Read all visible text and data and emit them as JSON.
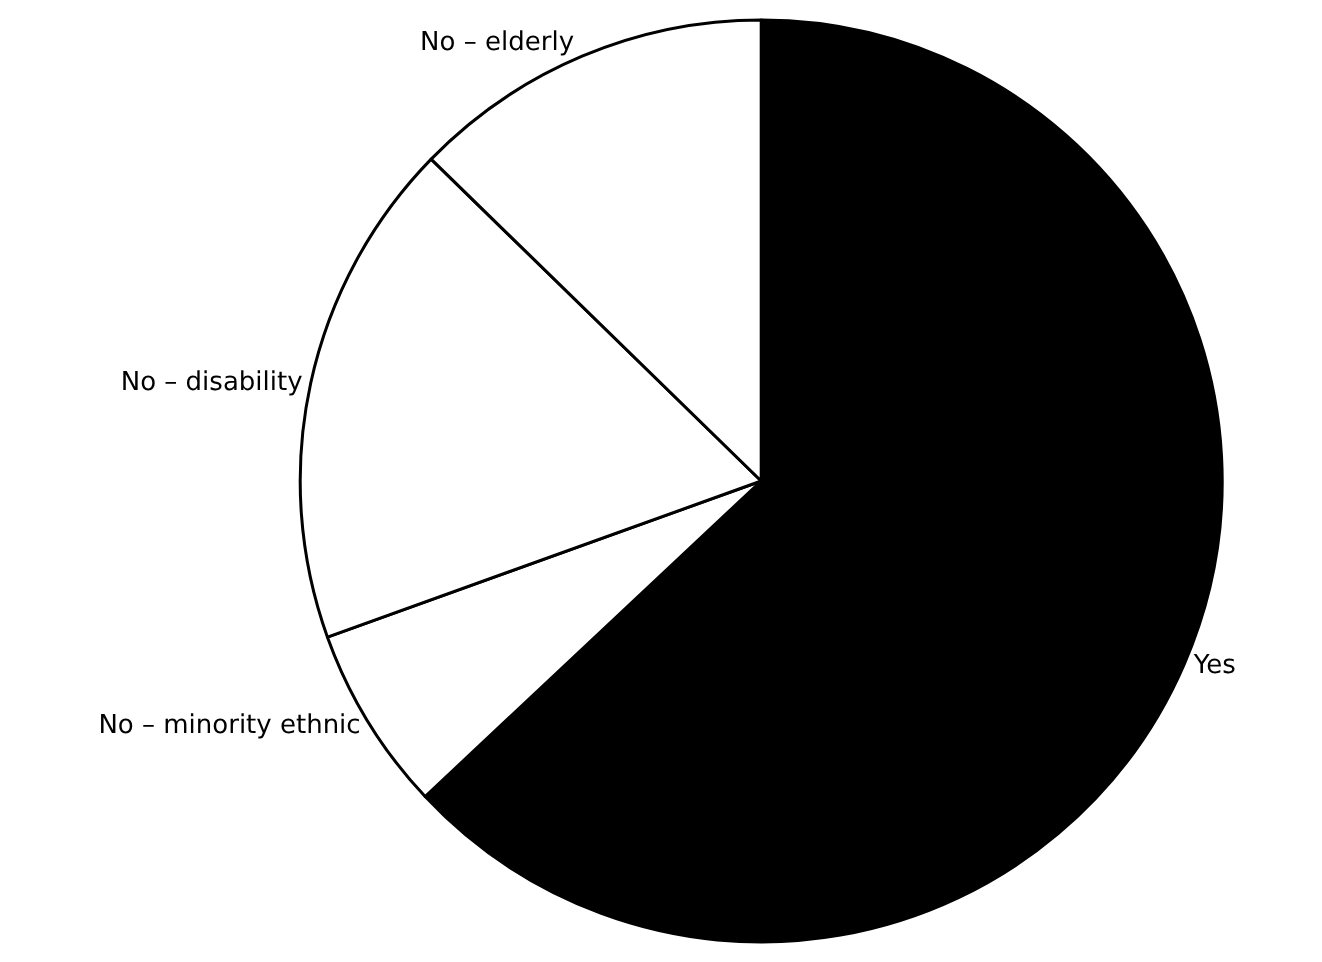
{
  "chart_data": {
    "type": "pie",
    "categories": [
      "Yes",
      "No – minority ethnic",
      "No – disability",
      "No – elderly"
    ],
    "values": [
      63,
      6.5,
      17.8,
      12.7
    ],
    "colors": [
      "#000000",
      "#ffffff",
      "#ffffff",
      "#ffffff"
    ],
    "legend": false
  }
}
